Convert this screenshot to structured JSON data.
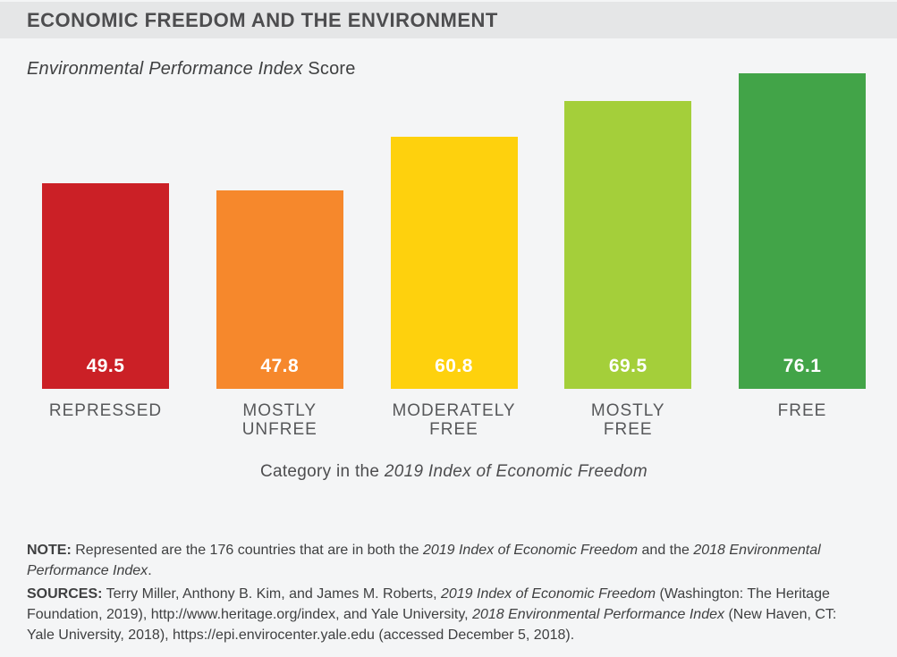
{
  "header": {
    "title": "ECONOMIC FREEDOM AND THE ENVIRONMENT"
  },
  "subtitle_segments": [
    {
      "t": "Environmental Performance Index",
      "i": true
    },
    {
      "t": " Score"
    }
  ],
  "chart_data": {
    "type": "bar",
    "title": "Economic Freedom and the Environment",
    "ylabel": "Environmental Performance Index Score",
    "xlabel": "Category in the 2019 Index of Economic Freedom",
    "categories": [
      "REPRESSED",
      "MOSTLY\nUNFREE",
      "MODERATELY\nFREE",
      "MOSTLY\nFREE",
      "FREE"
    ],
    "values": [
      49.5,
      47.8,
      60.8,
      69.5,
      76.1
    ],
    "value_labels": [
      "49.5",
      "47.8",
      "60.8",
      "69.5",
      "76.1"
    ],
    "bar_colors": [
      "#cb2026",
      "#f6882c",
      "#fed10d",
      "#a4cf3a",
      "#42a448"
    ],
    "value_label_color": "#ffffff",
    "ylim": [
      0,
      80
    ],
    "grid": false,
    "legend": false
  },
  "caption_segments": [
    {
      "t": "Category in the "
    },
    {
      "t": "2019 Index of Economic Freedom",
      "i": true
    }
  ],
  "notes": {
    "paragraphs": [
      {
        "segments": [
          {
            "t": "NOTE:",
            "b": true
          },
          {
            "t": " Represented are the 176 countries that are in both the "
          },
          {
            "t": "2019 Index of Economic Freedom",
            "i": true
          },
          {
            "t": " and the "
          },
          {
            "t": "2018 Environmental Performance Index",
            "i": true
          },
          {
            "t": "."
          }
        ]
      },
      {
        "segments": [
          {
            "t": "SOURCES:",
            "b": true
          },
          {
            "t": " Terry Miller, Anthony B. Kim, and James M. Roberts, "
          },
          {
            "t": "2019 Index of Economic Freedom",
            "i": true
          },
          {
            "t": " (Washington: The Heritage Foundation, 2019), http://www.heritage.org/index, and Yale University, "
          },
          {
            "t": "2018 Environmental Performance Index",
            "i": true
          },
          {
            "t": " (New Haven, CT: Yale University, 2018), https://epi.envirocenter.yale.edu (accessed December 5, 2018)."
          }
        ]
      }
    ]
  },
  "ui_colors": {
    "page_bg": "#f4f5f6",
    "header_band_bg": "#e5e6e7",
    "title_text": "#4d4d4f",
    "body_text": "#3f4041",
    "category_label_text": "#57585a"
  }
}
